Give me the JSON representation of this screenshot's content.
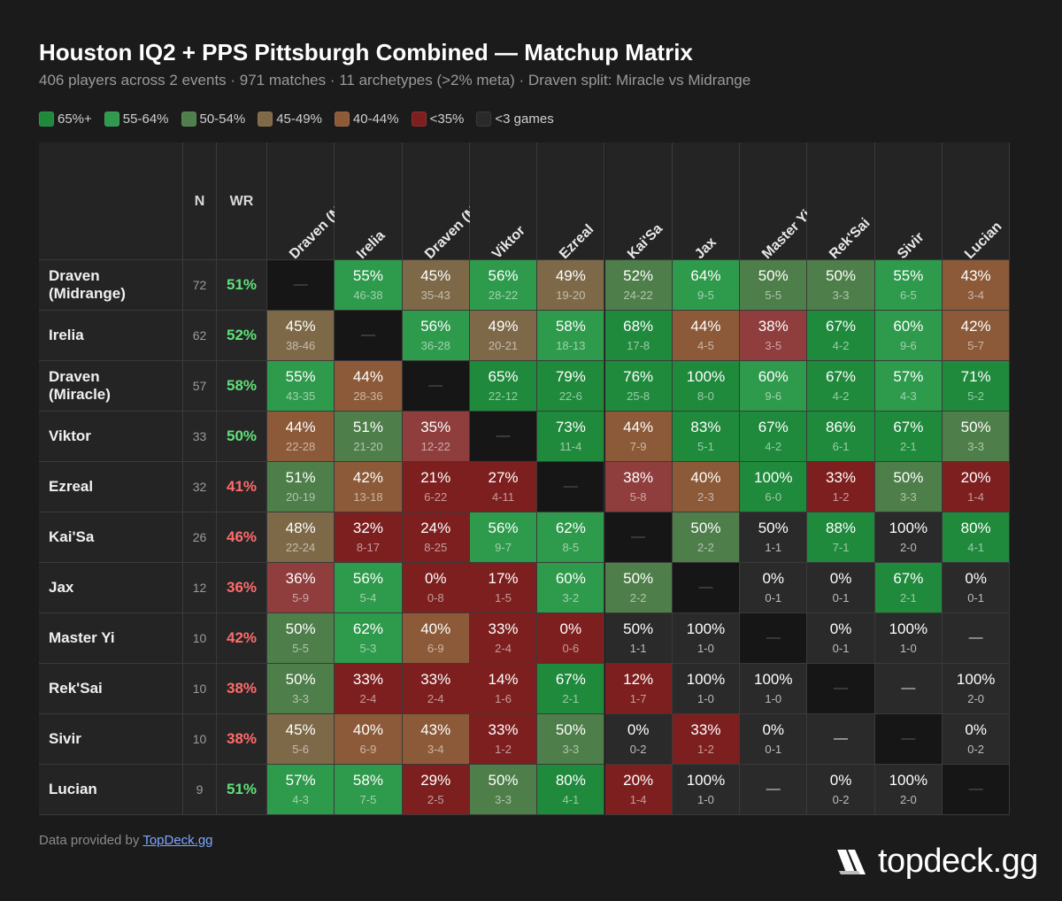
{
  "title": "Houston IQ2 + PPS Pittsburgh Combined — Matchup Matrix",
  "subtitle": "406 players across 2 events · 971 matches · 11 archetypes (>2% meta) · Draven split: Miracle vs Midrange",
  "legend": [
    {
      "label": "65%+",
      "color": "#1f8a3c"
    },
    {
      "label": "55-64%",
      "color": "#2f9a4e"
    },
    {
      "label": "50-54%",
      "color": "#4f7f4a"
    },
    {
      "label": "45-49%",
      "color": "#7f6a48"
    },
    {
      "label": "40-44%",
      "color": "#8f5a38"
    },
    {
      "label": "<35%",
      "color": "#7e1f1f"
    },
    {
      "label": "<3 games",
      "color": "#2a2a2a"
    }
  ],
  "footer": {
    "prefix": "Data provided by ",
    "link": "TopDeck.gg"
  },
  "brand": {
    "name": "topdeck.gg"
  },
  "chart_data": {
    "type": "table",
    "title": "Houston IQ2 + PPS Pittsburgh Combined — Matchup Matrix",
    "header": {
      "n": "N",
      "wr": "WR"
    },
    "columns": [
      "Draven (Midrange)",
      "Irelia",
      "Draven (Miracle)",
      "Viktor",
      "Ezreal",
      "Kai'Sa",
      "Jax",
      "Master Yi",
      "Rek'Sai",
      "Sivir",
      "Lucian"
    ],
    "empty_mark": "—",
    "rows": [
      {
        "name": "Draven\n(Midrange)",
        "n": 72,
        "wr": "51%",
        "cells": [
          null,
          [
            "55%",
            "46-38"
          ],
          [
            "45%",
            "35-43"
          ],
          [
            "56%",
            "28-22"
          ],
          [
            "49%",
            "19-20"
          ],
          [
            "52%",
            "24-22"
          ],
          [
            "64%",
            "9-5"
          ],
          [
            "50%",
            "5-5"
          ],
          [
            "50%",
            "3-3"
          ],
          [
            "55%",
            "6-5"
          ],
          [
            "43%",
            "3-4"
          ]
        ]
      },
      {
        "name": "Irelia",
        "n": 62,
        "wr": "52%",
        "cells": [
          [
            "45%",
            "38-46"
          ],
          null,
          [
            "56%",
            "36-28"
          ],
          [
            "49%",
            "20-21"
          ],
          [
            "58%",
            "18-13"
          ],
          [
            "68%",
            "17-8"
          ],
          [
            "44%",
            "4-5"
          ],
          [
            "38%",
            "3-5"
          ],
          [
            "67%",
            "4-2"
          ],
          [
            "60%",
            "9-6"
          ],
          [
            "42%",
            "5-7"
          ]
        ]
      },
      {
        "name": "Draven\n(Miracle)",
        "n": 57,
        "wr": "58%",
        "cells": [
          [
            "55%",
            "43-35"
          ],
          [
            "44%",
            "28-36"
          ],
          null,
          [
            "65%",
            "22-12"
          ],
          [
            "79%",
            "22-6"
          ],
          [
            "76%",
            "25-8"
          ],
          [
            "100%",
            "8-0"
          ],
          [
            "60%",
            "9-6"
          ],
          [
            "67%",
            "4-2"
          ],
          [
            "57%",
            "4-3"
          ],
          [
            "71%",
            "5-2"
          ]
        ]
      },
      {
        "name": "Viktor",
        "n": 33,
        "wr": "50%",
        "cells": [
          [
            "44%",
            "22-28"
          ],
          [
            "51%",
            "21-20"
          ],
          [
            "35%",
            "12-22"
          ],
          null,
          [
            "73%",
            "11-4"
          ],
          [
            "44%",
            "7-9"
          ],
          [
            "83%",
            "5-1"
          ],
          [
            "67%",
            "4-2"
          ],
          [
            "86%",
            "6-1"
          ],
          [
            "67%",
            "2-1"
          ],
          [
            "50%",
            "3-3"
          ]
        ]
      },
      {
        "name": "Ezreal",
        "n": 32,
        "wr": "41%",
        "cells": [
          [
            "51%",
            "20-19"
          ],
          [
            "42%",
            "13-18"
          ],
          [
            "21%",
            "6-22"
          ],
          [
            "27%",
            "4-11"
          ],
          null,
          [
            "38%",
            "5-8"
          ],
          [
            "40%",
            "2-3"
          ],
          [
            "100%",
            "6-0"
          ],
          [
            "33%",
            "1-2"
          ],
          [
            "50%",
            "3-3"
          ],
          [
            "20%",
            "1-4"
          ]
        ]
      },
      {
        "name": "Kai'Sa",
        "n": 26,
        "wr": "46%",
        "cells": [
          [
            "48%",
            "22-24"
          ],
          [
            "32%",
            "8-17"
          ],
          [
            "24%",
            "8-25"
          ],
          [
            "56%",
            "9-7"
          ],
          [
            "62%",
            "8-5"
          ],
          null,
          [
            "50%",
            "2-2"
          ],
          [
            "50%",
            "1-1"
          ],
          [
            "88%",
            "7-1"
          ],
          [
            "100%",
            "2-0"
          ],
          [
            "80%",
            "4-1"
          ]
        ]
      },
      {
        "name": "Jax",
        "n": 12,
        "wr": "36%",
        "cells": [
          [
            "36%",
            "5-9"
          ],
          [
            "56%",
            "5-4"
          ],
          [
            "0%",
            "0-8"
          ],
          [
            "17%",
            "1-5"
          ],
          [
            "60%",
            "3-2"
          ],
          [
            "50%",
            "2-2"
          ],
          null,
          [
            "0%",
            "0-1"
          ],
          [
            "0%",
            "0-1"
          ],
          [
            "67%",
            "2-1"
          ],
          [
            "0%",
            "0-1"
          ]
        ]
      },
      {
        "name": "Master Yi",
        "n": 10,
        "wr": "42%",
        "cells": [
          [
            "50%",
            "5-5"
          ],
          [
            "62%",
            "5-3"
          ],
          [
            "40%",
            "6-9"
          ],
          [
            "33%",
            "2-4"
          ],
          [
            "0%",
            "0-6"
          ],
          [
            "50%",
            "1-1"
          ],
          [
            "100%",
            "1-0"
          ],
          null,
          [
            "0%",
            "0-1"
          ],
          [
            "100%",
            "1-0"
          ],
          "none"
        ]
      },
      {
        "name": "Rek'Sai",
        "n": 10,
        "wr": "38%",
        "cells": [
          [
            "50%",
            "3-3"
          ],
          [
            "33%",
            "2-4"
          ],
          [
            "33%",
            "2-4"
          ],
          [
            "14%",
            "1-6"
          ],
          [
            "67%",
            "2-1"
          ],
          [
            "12%",
            "1-7"
          ],
          [
            "100%",
            "1-0"
          ],
          [
            "100%",
            "1-0"
          ],
          null,
          "none",
          [
            "100%",
            "2-0"
          ]
        ]
      },
      {
        "name": "Sivir",
        "n": 10,
        "wr": "38%",
        "cells": [
          [
            "45%",
            "5-6"
          ],
          [
            "40%",
            "6-9"
          ],
          [
            "43%",
            "3-4"
          ],
          [
            "33%",
            "1-2"
          ],
          [
            "50%",
            "3-3"
          ],
          [
            "0%",
            "0-2"
          ],
          [
            "33%",
            "1-2"
          ],
          [
            "0%",
            "0-1"
          ],
          "none",
          null,
          [
            "0%",
            "0-2"
          ]
        ]
      },
      {
        "name": "Lucian",
        "n": 9,
        "wr": "51%",
        "cells": [
          [
            "57%",
            "4-3"
          ],
          [
            "58%",
            "7-5"
          ],
          [
            "29%",
            "2-5"
          ],
          [
            "50%",
            "3-3"
          ],
          [
            "80%",
            "4-1"
          ],
          [
            "20%",
            "1-4"
          ],
          [
            "100%",
            "1-0"
          ],
          "none",
          [
            "0%",
            "0-2"
          ],
          [
            "100%",
            "2-0"
          ],
          null
        ]
      }
    ]
  }
}
